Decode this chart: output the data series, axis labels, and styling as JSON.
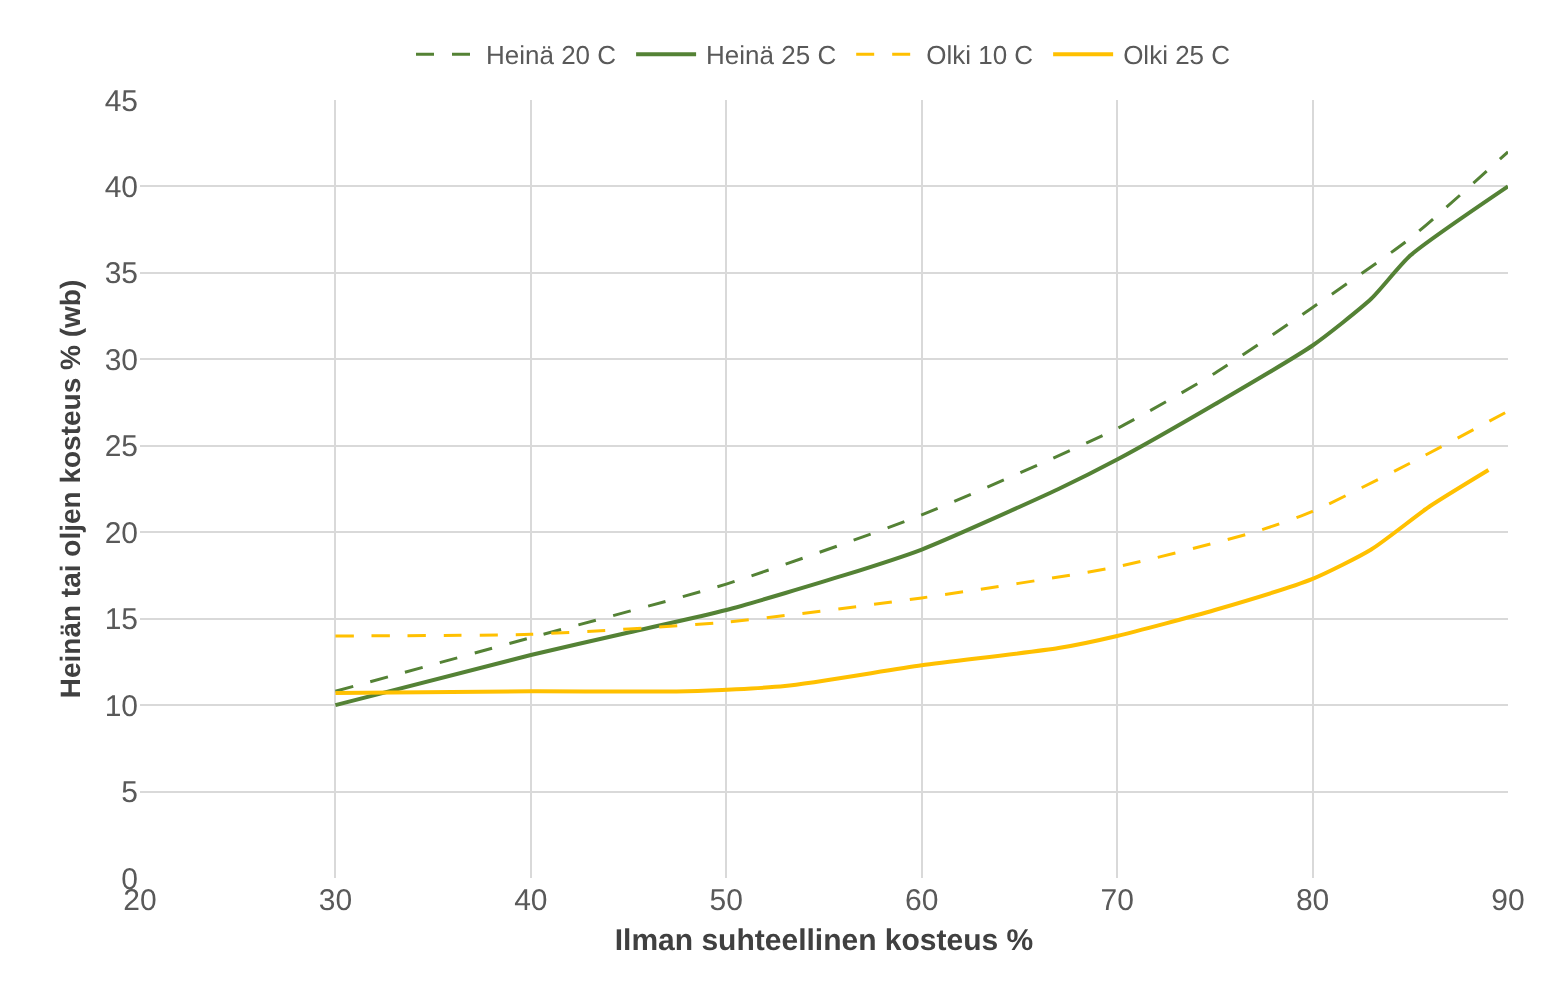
{
  "chart_data": {
    "type": "line",
    "xlabel": "Ilman suhteellinen kosteus %",
    "ylabel": "Heinän tai oljen kosteus % (wb)",
    "xlim": [
      20,
      90
    ],
    "xticks": [
      20,
      30,
      40,
      50,
      60,
      70,
      80,
      90
    ],
    "ylim": [
      0,
      45
    ],
    "yticks": [
      0,
      5,
      10,
      15,
      20,
      25,
      30,
      35,
      40,
      45
    ],
    "grid": true,
    "legend": "top",
    "marker": "none",
    "series": [
      {
        "name": "Heinä 20 C",
        "color": "#548235",
        "line_style": "dashed",
        "x": [
          30,
          40,
          50,
          60,
          70,
          75,
          80,
          85,
          90
        ],
        "values": [
          10.8,
          13.9,
          17.0,
          21.0,
          26.0,
          29.2,
          33.0,
          37.0,
          42.0
        ]
      },
      {
        "name": "Heinä 25 C",
        "color": "#548235",
        "line_style": "solid",
        "x": [
          30,
          40,
          45,
          50,
          56,
          60,
          67,
          70,
          75,
          80,
          83,
          85,
          90
        ],
        "values": [
          10.0,
          12.9,
          14.2,
          15.5,
          17.5,
          19.0,
          22.5,
          24.2,
          27.4,
          30.8,
          33.5,
          36.0,
          40.0
        ]
      },
      {
        "name": "Olki 10 C",
        "color": "#ffc000",
        "line_style": "dashed",
        "x": [
          30,
          40,
          50,
          60,
          70,
          77,
          80,
          85,
          90
        ],
        "values": [
          14.0,
          14.1,
          14.8,
          16.2,
          18.0,
          20.0,
          21.2,
          24.0,
          27.0
        ]
      },
      {
        "name": "Olki 25 C",
        "color": "#ffc000",
        "line_style": "solid",
        "x": [
          30,
          40,
          48,
          53,
          60,
          67,
          70,
          75,
          80,
          83,
          86,
          89
        ],
        "values": [
          10.7,
          10.8,
          10.8,
          11.1,
          12.3,
          13.3,
          14.0,
          15.5,
          17.3,
          19.0,
          21.5,
          23.6
        ]
      }
    ]
  }
}
